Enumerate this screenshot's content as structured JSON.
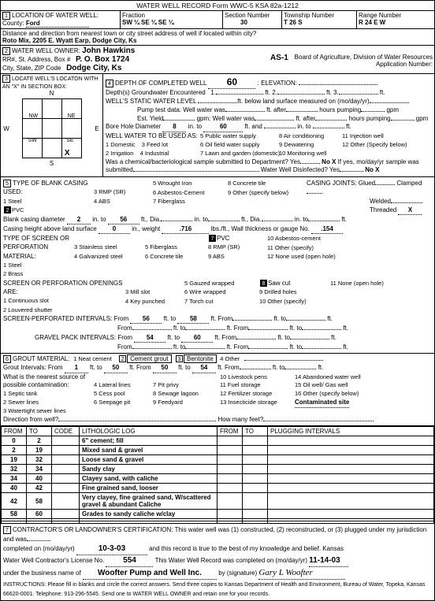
{
  "form_header": "WATER WELL RECORD    Form WWC-5    KSA 82a-1212",
  "section1": {
    "title": "LOCATION OF WATER WELL:",
    "county_label": "County:",
    "county": "Ford",
    "fraction_label": "Fraction",
    "fraction": "SW ¼ SE ¼ SE ¼",
    "section_label": "Section Number",
    "section": "30",
    "township_label": "Township Number",
    "township": "T    26    S",
    "range_label": "Range Number",
    "range": "R    24    E W",
    "direction_label": "Distance and direction from nearest town or city street address of well if located within city?",
    "direction": "Roto Mix, 2205 E. Wyatt Earp, Dodge City, Ks"
  },
  "section2": {
    "title": "WATER WELL OWNER:",
    "owner": "John Hawkins",
    "addr_label": "RR#, St. Address, Box #",
    "addr": "P. O. Box 1724",
    "city_label": "City, State, ZIP Code",
    "city": "Dodge City, Ks",
    "app_id": "AS-1",
    "board": "Board of Agriculture, Division of Water Resources",
    "app_label": "Application Number:"
  },
  "section3": {
    "title": "LOCATE WELL'S LOCATON WITH AN \"X\" IN SECTION BOX:",
    "n": "N",
    "s": "S",
    "e": "E",
    "w": "W",
    "nw": "NW",
    "ne": "NE",
    "sw": "SW",
    "se": "SE",
    "mark": "X"
  },
  "section4": {
    "depth_label": "DEPTH OF COMPLETED WELL",
    "depth": "60",
    "elevation_label": "ELEVATION:",
    "gw_label": "Depth(s) Groundwater Encountered",
    "gw_1": "1.",
    "gw_2": "ft. 2.",
    "gw_3": "ft. 3.",
    "gw_ft": "ft.",
    "static_label": "WELL'S STATIC WATER LEVEL",
    "static_below": "ft. below land surface measured on (mo/day/yr)",
    "pump_label": "Pump test data: Well water was",
    "pump_after": "ft. after",
    "pump_hours": "hours pumping",
    "pump_gpm": "gpm",
    "est_label": "Est. Yield",
    "est_gpm": "gpm: Well water was",
    "bore_label": "Bore Hole Diameter",
    "bore_dia": "8",
    "bore_to_label": "in. to",
    "bore_to": "60",
    "bore_ft": "ft. and",
    "bore_in_to": "in. to",
    "bore_ft2": "ft.",
    "use_label": "WELL WATER TO BE USED AS:",
    "uses": [
      "1 Domestic",
      "2 Irrigation",
      "3 Feed lot",
      "4 Industrial",
      "5 Public water supply",
      "6 Oil field water supply",
      "7 Lawn and garden (domestic)",
      "8 Air conditioning",
      "9 Dewatering",
      "10 Monitoring well",
      "11 Injection well",
      "12 Other (Specify below)"
    ],
    "chem_label": "Was a chemical/bacteriological sample submitted to Department? Yes",
    "chem_no": "No X",
    "chem_if": "If yes, mo/day/yr sample was",
    "submitted": "submitted",
    "disinfect": "Water Well Disinfected? Yes",
    "disinfect_no": "No X"
  },
  "section5": {
    "title": "TYPE OF BLANK CASING USED:",
    "types": [
      "1 Steel",
      "2 PVC",
      "3 RMP (SR)",
      "4 ABS",
      "5 Wrought Iron",
      "6 Asbestos-Cement",
      "7 Fiberglass",
      "8 Concrete tile",
      "9 Other (specify below)"
    ],
    "pvc_selected": "2",
    "joints_label": "CASING JOINTS: Glued",
    "joints_clamped": "Clamped",
    "joints_welded": "Welded",
    "joints_threaded": "Threaded",
    "joints_x": "X",
    "blank_label": "Blank casing diameter",
    "blank_dia": "2",
    "blank_in_to": "in. to",
    "blank_56": "56",
    "blank_ft_dia": "ft., Dia.",
    "blank_in_to2": "in. to",
    "blank_ft_dia2": "ft., Dia.",
    "blank_in_to3": "in. to",
    "blank_ft": "ft.",
    "height_label": "Casing height above land surface",
    "height": "0",
    "height_weight": "in., weight",
    "height_716": ".716",
    "height_lbs": "lbs./ft., Wall thickness or gauge No.",
    "height_154": ".154",
    "screen_label": "TYPE OF SCREEN OR PERFORATION MATERIAL:",
    "screen_types": [
      "1 Steel",
      "2 Brass",
      "3 Stainless steel",
      "4 Galvanized steel",
      "5 Fiberglass",
      "6 Concrete tile",
      "7 PVC",
      "8 RMP (SR)",
      "9 ABS",
      "10 Asbestos-cement",
      "11 Other (specify)",
      "12 None used (open hole)"
    ],
    "pvc7": "7",
    "open_label": "SCREEN OR PERFORATION OPENINGS ARE:",
    "openings": [
      "1 Continuous slot",
      "2 Louvered shutter",
      "3 Mill slot",
      "4 Key punched",
      "5 Gauzed wrapped",
      "6 Wire wrapped",
      "7 Torch cut",
      "8 Saw cut",
      "9 Drilled holes",
      "10 Other (specify)",
      "11 None (open hole)"
    ],
    "saw8": "8",
    "perf_label": "SCREEN-PERFORATED INTERVALS: From",
    "perf_56": "56",
    "perf_to": "ft. to",
    "perf_58": "58",
    "perf_from": "ft. From",
    "perf_ft_to": "ft. to",
    "perf_ft": "ft.",
    "gravel_label": "GRAVEL PACK INTERVALS: From",
    "gravel_54": "54",
    "gravel_60": "60"
  },
  "section6": {
    "title": "GROUT MATERIAL:",
    "grout_types": [
      "1 Neat cement",
      "2 Cement grout",
      "3 Bentonite",
      "4 Other"
    ],
    "grout_sel": "2",
    "interval_label": "Grout Intervals: From",
    "g1": "1",
    "g_to": "ft. to",
    "g50": "50",
    "g_from": "ft. From",
    "g50b": "50",
    "g54": "54",
    "contam_label": "What is the nearest source of possible contamination:",
    "contam_opts": [
      "1 Septic tank",
      "2 Sewer lines",
      "3 Watertight sewer lines",
      "4 Lateral lines",
      "5 Cess pool",
      "6 Seepage pit",
      "7 Pit privy",
      "8 Sewage lagoon",
      "9 Feedyard",
      "10 Livestock pens",
      "11 Fuel storage",
      "12 Fertilizer storage",
      "13 Insecticide storage",
      "14 Abandoned water well",
      "15 Oil well/ Gas well",
      "16 Other (specify below)"
    ],
    "contam_site": "Contaminated site",
    "dir_label": "Direction from well?",
    "feet_label": "How many feet?"
  },
  "log_headers": [
    "FROM",
    "TO",
    "CODE",
    "LITHOLOGIC LOG",
    "FROM",
    "TO",
    "PLUGGING INTERVALS"
  ],
  "log_rows": [
    [
      "0",
      "2",
      "",
      "6\" cement; fill",
      "",
      "",
      ""
    ],
    [
      "2",
      "19",
      "",
      "Mixed sand & gravel",
      "",
      "",
      ""
    ],
    [
      "19",
      "32",
      "",
      "Loose sand & gravel",
      "",
      "",
      ""
    ],
    [
      "32",
      "34",
      "",
      "Sandy clay",
      "",
      "",
      ""
    ],
    [
      "34",
      "40",
      "",
      "Clayey sand, with caliche",
      "",
      "",
      ""
    ],
    [
      "40",
      "42",
      "",
      "Fine grained sand, looser",
      "",
      "",
      ""
    ],
    [
      "42",
      "58",
      "",
      "Very clayey, fine grained sand, W/scattered gravel & abundant Caliche",
      "",
      "",
      ""
    ],
    [
      "58",
      "60",
      "",
      "Grades to sandy caliche w/clay",
      "",
      "",
      ""
    ],
    [
      "",
      "",
      "",
      "",
      "",
      "",
      ""
    ],
    [
      "",
      "",
      "",
      "",
      "",
      "",
      ""
    ]
  ],
  "section7": {
    "cert": "CONTRACTOR'S OR LANDOWNER'S CERTIFICATION: This water well was (1) constructed, (2) reconstructed, or (3) plugged under my jurisdiction and was",
    "completed_label": "completed on (mo/day/yr)",
    "completed": "10-3-03",
    "record_true": "and this record is true to the best of my knowledge and belief. Kansas",
    "license_label": "Water Well Contractor's License No.",
    "license": "554",
    "record_date_label": "This Water Well Record was completed on (mo/day/yr)",
    "record_date": "11-14-03",
    "business_label": "under the business name of",
    "business": "Woofter Pump and Well Inc.",
    "sig_label": "by (signature)",
    "signature": "Gary L Woofter",
    "instructions": "INSTRUCTIONS: Please fill in blanks and circle the correct answers. Send three copies to Kansas Department of Health and Environment, Bureau of Water, Topeka, Kansas 66620-0001. Telephone: 913-296-5545. Send one to WATER WELL OWNER and retain one for your records."
  }
}
